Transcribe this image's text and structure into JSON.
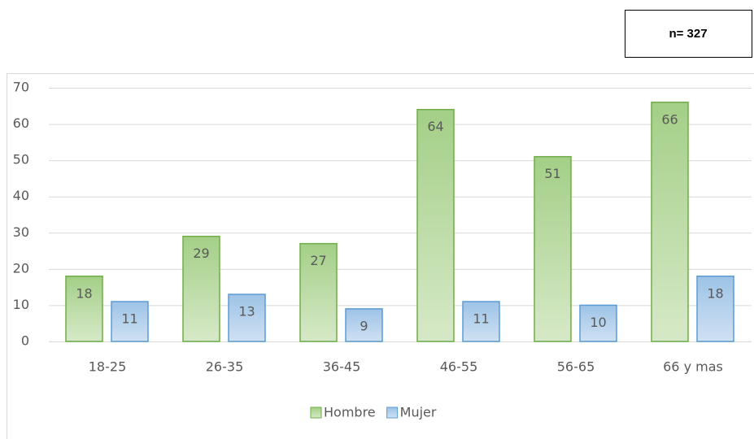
{
  "chart_data": {
    "type": "bar",
    "annotation": "n= 327",
    "categories": [
      "18-25",
      "26-35",
      "36-45",
      "46-55",
      "56-65",
      "66 y mas"
    ],
    "series": [
      {
        "name": "Hombre",
        "color": "#70ad47",
        "values": [
          18,
          29,
          27,
          64,
          51,
          66
        ]
      },
      {
        "name": "Mujer",
        "color": "#5b9bd5",
        "values": [
          11,
          13,
          9,
          11,
          10,
          18
        ]
      }
    ],
    "ylim": [
      0,
      70
    ],
    "yticks": [
      0,
      10,
      20,
      30,
      40,
      50,
      60,
      70
    ],
    "grid": true,
    "legend": "bottom"
  }
}
